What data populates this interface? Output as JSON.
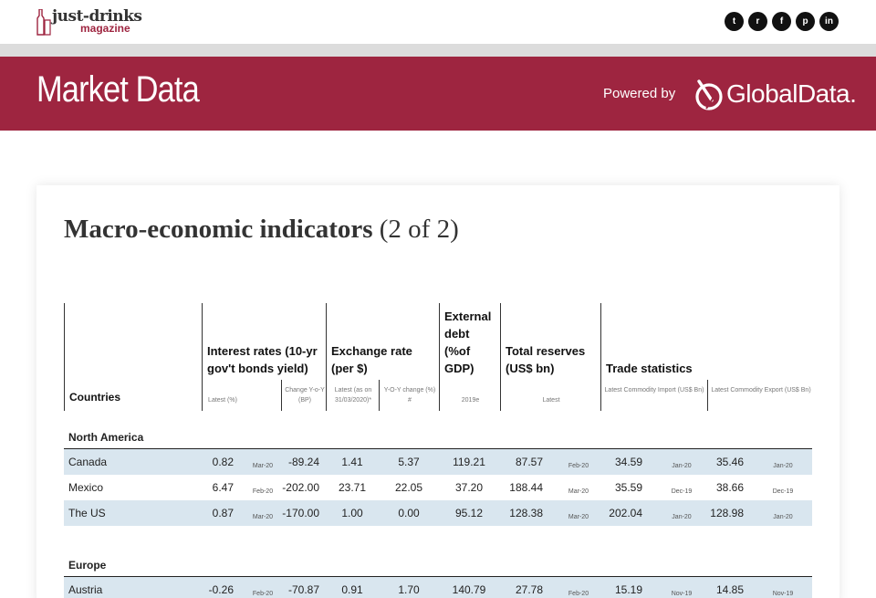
{
  "site": {
    "logo_title": "just-drinks",
    "logo_sub": "magazine",
    "socials": [
      {
        "icon": "twitter-icon",
        "glyph": "t"
      },
      {
        "icon": "reddit-icon",
        "glyph": "r"
      },
      {
        "icon": "facebook-icon",
        "glyph": "f"
      },
      {
        "icon": "pinterest-icon",
        "glyph": "p"
      },
      {
        "icon": "linkedin-icon",
        "glyph": "in"
      }
    ]
  },
  "banner": {
    "title": "Market Data",
    "powered_by": "Powered by",
    "partner": "GlobalData."
  },
  "colors": {
    "brand": "#9e2540",
    "row_shade": "#d9e6ef"
  },
  "card": {
    "title_bold": "Macro-economic indicators",
    "title_suffix": " (2 of 2)"
  },
  "table": {
    "headers": {
      "countries": "Countries",
      "interest": "Interest rates (10-yr gov't bonds yield)",
      "interest_sub1": "Latest (%)",
      "interest_sub2": "Change Y-o-Y (BP)",
      "exchange": "Exchange rate (per $)",
      "exchange_sub1": "Latest (as on 31/03/2020)*",
      "exchange_sub2": "Y-O-Y change (%) #",
      "debt": "External debt (%of GDP)",
      "debt_sub": "2019e",
      "reserves": "Total reserves (US$ bn)",
      "reserves_sub": "Latest",
      "trade": "Trade statistics",
      "trade_sub1": "Latest Commodity Import (US$ Bn)",
      "trade_sub2": "Latest Commodity Export (US$ Bn)"
    },
    "groups": [
      {
        "name": "North America",
        "rows": [
          {
            "country": "Canada",
            "ir": "0.82",
            "ir_date": "Mar-20",
            "ir_chg": "-89.24",
            "fx": "1.41",
            "fx_chg": "5.37",
            "debt": "119.21",
            "res": "87.57",
            "res_date": "Feb-20",
            "imp": "34.59",
            "imp_date": "Jan-20",
            "exp": "35.46",
            "exp_date": "Jan-20"
          },
          {
            "country": "Mexico",
            "ir": "6.47",
            "ir_date": "Feb-20",
            "ir_chg": "-202.00",
            "fx": "23.71",
            "fx_chg": "22.05",
            "debt": "37.20",
            "res": "188.44",
            "res_date": "Mar-20",
            "imp": "35.59",
            "imp_date": "Dec-19",
            "exp": "38.66",
            "exp_date": "Dec-19"
          },
          {
            "country": "The US",
            "ir": "0.87",
            "ir_date": "Mar-20",
            "ir_chg": "-170.00",
            "fx": "1.00",
            "fx_chg": "0.00",
            "debt": "95.12",
            "res": "128.38",
            "res_date": "Mar-20",
            "imp": "202.04",
            "imp_date": "Jan-20",
            "exp": "128.98",
            "exp_date": "Jan-20"
          }
        ]
      },
      {
        "name": "Europe",
        "rows": [
          {
            "country": "Austria",
            "ir": "-0.26",
            "ir_date": "Feb-20",
            "ir_chg": "-70.87",
            "fx": "0.91",
            "fx_chg": "1.70",
            "debt": "140.79",
            "res": "27.78",
            "res_date": "Feb-20",
            "imp": "15.19",
            "imp_date": "Nov-19",
            "exp": "14.85",
            "exp_date": "Nov-19"
          }
        ]
      }
    ]
  }
}
